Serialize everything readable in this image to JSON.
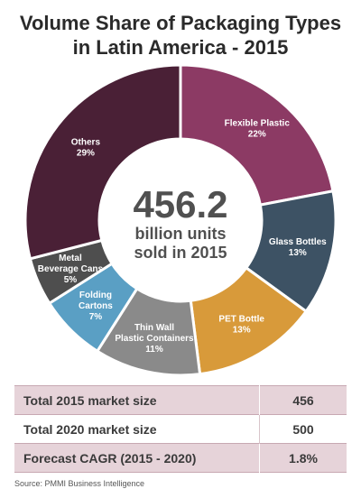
{
  "title_line1": "Volume Share of Packaging Types",
  "title_line2": "in Latin America - 2015",
  "chart_data": {
    "type": "pie",
    "title": "Volume Share of Packaging Types in Latin America - 2015",
    "slices": [
      {
        "label": [
          "Flexible Plastic"
        ],
        "value": 22,
        "value_label": "22%",
        "color": "#8c3a64"
      },
      {
        "label": [
          "Glass Bottles"
        ],
        "value": 13,
        "value_label": "13%",
        "color": "#3d5264"
      },
      {
        "label": [
          "PET Bottle"
        ],
        "value": 13,
        "value_label": "13%",
        "color": "#d89a3a"
      },
      {
        "label": [
          "Thin Wall",
          "Plastic Containers"
        ],
        "value": 11,
        "value_label": "11%",
        "color": "#8a8a8a"
      },
      {
        "label": [
          "Folding",
          "Cartons"
        ],
        "value": 7,
        "value_label": "7%",
        "color": "#5a9fc4"
      },
      {
        "label": [
          "Metal",
          "Beverage Cans"
        ],
        "value": 5,
        "value_label": "5%",
        "color": "#4e4e4e"
      },
      {
        "label": [
          "Others"
        ],
        "value": 29,
        "value_label": "29%",
        "color": "#4a2036"
      }
    ],
    "center": {
      "value": "456.2",
      "line1": "billion units",
      "line2": "sold in 2015"
    }
  },
  "table": {
    "rows": [
      {
        "label": "Total 2015 market size",
        "value": "456"
      },
      {
        "label": "Total 2020 market size",
        "value": "500"
      },
      {
        "label": "Forecast CAGR (2015 - 2020)",
        "value": "1.8%"
      }
    ]
  },
  "source": "Source: PMMI Business Intelligence"
}
